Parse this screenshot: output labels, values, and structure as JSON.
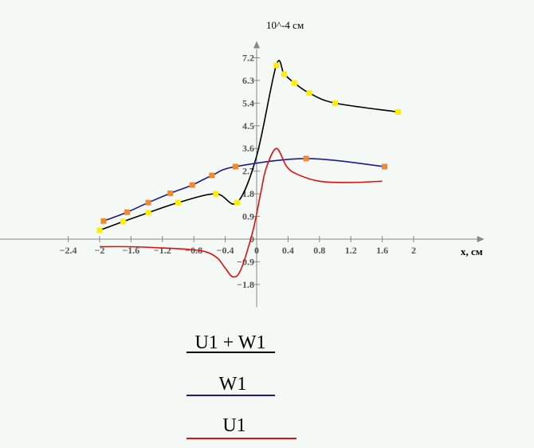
{
  "chart_data": {
    "type": "line",
    "ylabel": "10^-4 см",
    "xlabel": "x, см",
    "xlim": [
      -3.4,
      2.9
    ],
    "ylim": [
      -2.7,
      7.8
    ],
    "x_ticks": [
      "−2.4",
      "−2",
      "−1.6",
      "−1.2",
      "−0.8",
      "−0.4",
      "0",
      "0.4",
      "0.8",
      "1.2",
      "1.6",
      "2"
    ],
    "x_tick_values": [
      -2.4,
      -2,
      -1.6,
      -1.2,
      -0.8,
      -0.4,
      0,
      0.4,
      0.8,
      1.2,
      1.6,
      2
    ],
    "y_ticks": [
      "−1.8",
      "−0.9",
      "0",
      "0.9",
      "1.8",
      "2.7",
      "3.6",
      "4.5",
      "5.4",
      "6.3",
      "7.2"
    ],
    "y_tick_values": [
      -1.8,
      -0.9,
      0,
      0.9,
      1.8,
      2.7,
      3.6,
      4.5,
      5.4,
      6.3,
      7.2
    ],
    "series": [
      {
        "name": "U1 + W1",
        "color": "#000000",
        "marker_color": "#ffee00",
        "x": [
          -2.0,
          -1.7,
          -1.38,
          -1.0,
          -0.52,
          -0.25,
          0.0,
          0.25,
          0.35,
          0.48,
          0.67,
          1.0,
          1.8
        ],
        "y": [
          0.35,
          0.7,
          1.05,
          1.45,
          1.8,
          1.45,
          3.3,
          6.9,
          6.55,
          6.2,
          5.8,
          5.4,
          5.05
        ],
        "markers": [
          true,
          true,
          true,
          true,
          true,
          true,
          false,
          true,
          true,
          true,
          true,
          true,
          true
        ]
      },
      {
        "name": "W1",
        "color": "#1a1a99",
        "marker_color": "#f08a30",
        "x": [
          -1.95,
          -1.65,
          -1.38,
          -1.1,
          -0.82,
          -0.57,
          -0.27,
          0.63,
          1.63
        ],
        "y": [
          0.72,
          1.07,
          1.45,
          1.82,
          2.15,
          2.53,
          2.88,
          3.2,
          2.88
        ],
        "markers": [
          true,
          true,
          true,
          true,
          true,
          true,
          true,
          true,
          true
        ]
      },
      {
        "name": "U1",
        "color": "#e01010",
        "x": [
          -2.0,
          -1.6,
          -1.2,
          -0.9,
          -0.65,
          -0.5,
          -0.4,
          -0.3,
          -0.2,
          -0.05,
          0.05,
          0.12,
          0.25,
          0.38,
          0.5,
          0.8,
          1.2,
          1.6
        ],
        "y": [
          -0.3,
          -0.3,
          -0.35,
          -0.4,
          -0.5,
          -0.75,
          -1.15,
          -1.5,
          -1.2,
          0.3,
          1.8,
          2.8,
          3.6,
          2.9,
          2.6,
          2.3,
          2.25,
          2.3
        ],
        "markers": []
      }
    ],
    "legend": {
      "placement": "bottom-left",
      "entries": [
        "U1 + W1",
        "W1",
        "U1"
      ]
    }
  }
}
